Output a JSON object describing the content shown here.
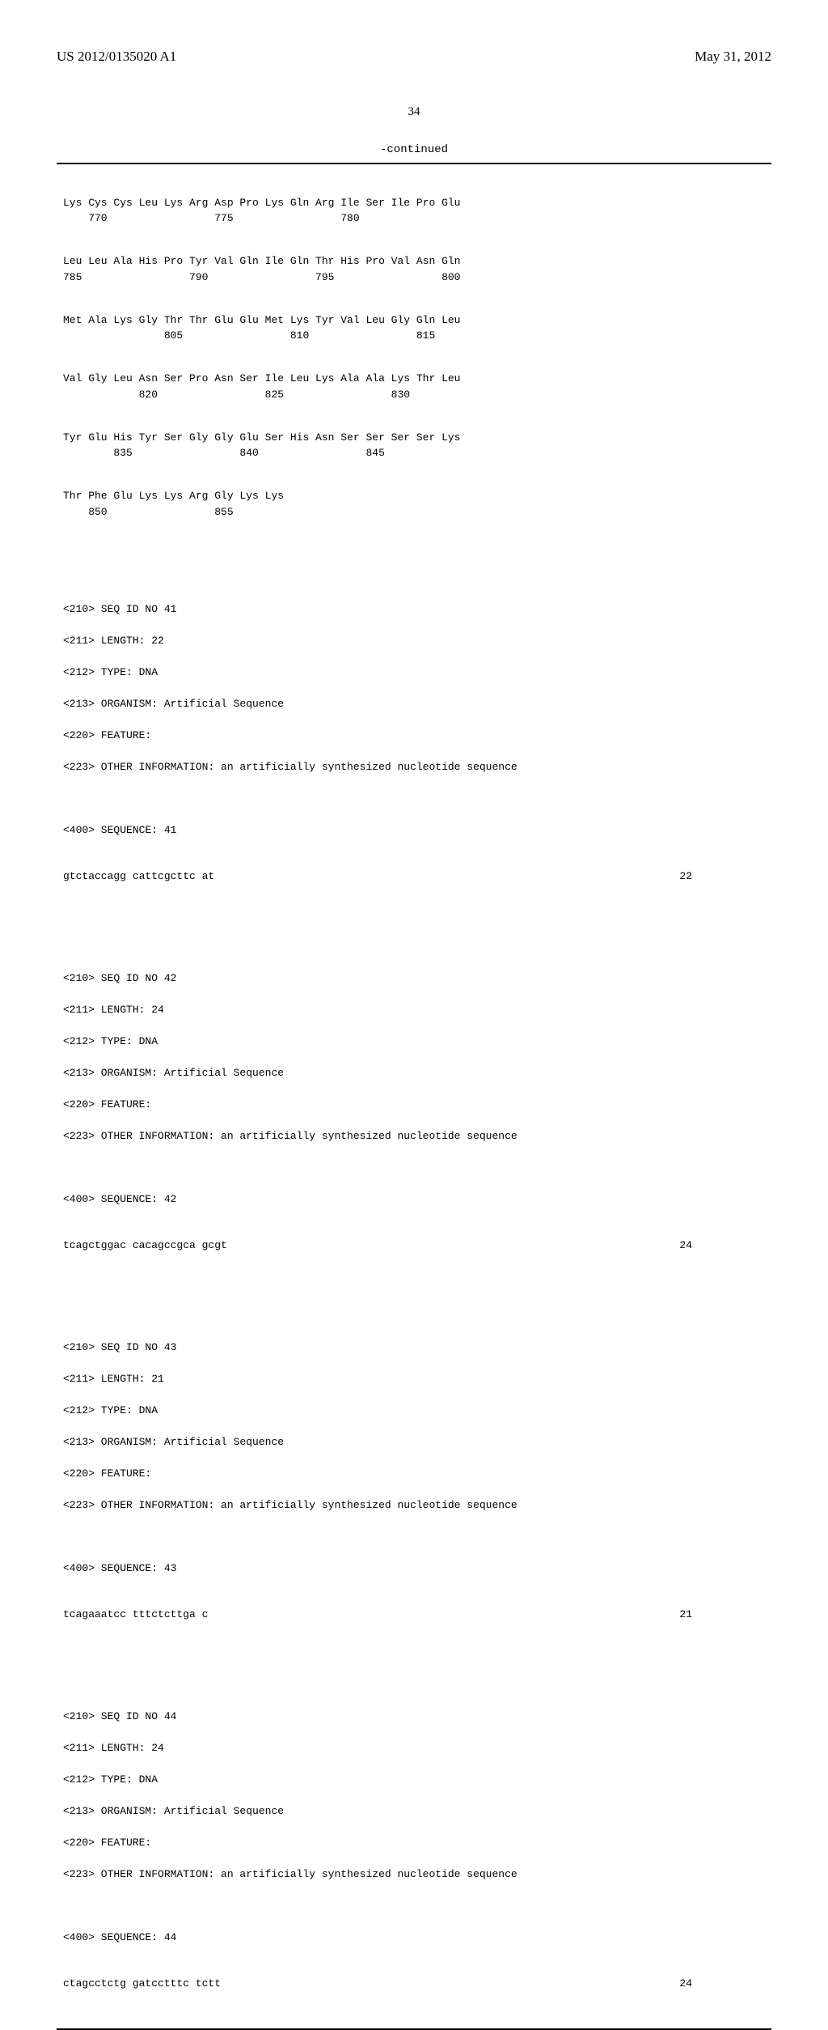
{
  "header": {
    "pub_number": "US 2012/0135020 A1",
    "pub_date": "May 31, 2012"
  },
  "page_number": "34",
  "continued_label": "-continued",
  "protein": {
    "rows": [
      {
        "aa": "Lys Cys Cys Leu Lys Arg Asp Pro Lys Gln Arg Ile Ser Ile Pro Glu",
        "nums": "    770                 775                 780"
      },
      {
        "aa": "Leu Leu Ala His Pro Tyr Val Gln Ile Gln Thr His Pro Val Asn Gln",
        "nums": "785                 790                 795                 800"
      },
      {
        "aa": "Met Ala Lys Gly Thr Thr Glu Glu Met Lys Tyr Val Leu Gly Gln Leu",
        "nums": "                805                 810                 815"
      },
      {
        "aa": "Val Gly Leu Asn Ser Pro Asn Ser Ile Leu Lys Ala Ala Lys Thr Leu",
        "nums": "            820                 825                 830"
      },
      {
        "aa": "Tyr Glu His Tyr Ser Gly Gly Glu Ser His Asn Ser Ser Ser Ser Lys",
        "nums": "        835                 840                 845"
      },
      {
        "aa": "Thr Phe Glu Lys Lys Arg Gly Lys Lys",
        "nums": "    850                 855"
      }
    ]
  },
  "entries": [
    {
      "seq_id": "<210> SEQ ID NO 41",
      "length": "<211> LENGTH: 22",
      "type": "<212> TYPE: DNA",
      "organism": "<213> ORGANISM: Artificial Sequence",
      "feature": "<220> FEATURE:",
      "other": "<223> OTHER INFORMATION: an artificially synthesized nucleotide sequence",
      "seq_label": "<400> SEQUENCE: 41",
      "seq_text": "gtctaccagg cattcgcttc at",
      "seq_len": "22"
    },
    {
      "seq_id": "<210> SEQ ID NO 42",
      "length": "<211> LENGTH: 24",
      "type": "<212> TYPE: DNA",
      "organism": "<213> ORGANISM: Artificial Sequence",
      "feature": "<220> FEATURE:",
      "other": "<223> OTHER INFORMATION: an artificially synthesized nucleotide sequence",
      "seq_label": "<400> SEQUENCE: 42",
      "seq_text": "tcagctggac cacagccgca gcgt",
      "seq_len": "24"
    },
    {
      "seq_id": "<210> SEQ ID NO 43",
      "length": "<211> LENGTH: 21",
      "type": "<212> TYPE: DNA",
      "organism": "<213> ORGANISM: Artificial Sequence",
      "feature": "<220> FEATURE:",
      "other": "<223> OTHER INFORMATION: an artificially synthesized nucleotide sequence",
      "seq_label": "<400> SEQUENCE: 43",
      "seq_text": "tcagaaatcc tttctcttga c",
      "seq_len": "21"
    },
    {
      "seq_id": "<210> SEQ ID NO 44",
      "length": "<211> LENGTH: 24",
      "type": "<212> TYPE: DNA",
      "organism": "<213> ORGANISM: Artificial Sequence",
      "feature": "<220> FEATURE:",
      "other": "<223> OTHER INFORMATION: an artificially synthesized nucleotide sequence",
      "seq_label": "<400> SEQUENCE: 44",
      "seq_text": "ctagcctctg gatcctttc tctt",
      "seq_len": "24"
    }
  ]
}
